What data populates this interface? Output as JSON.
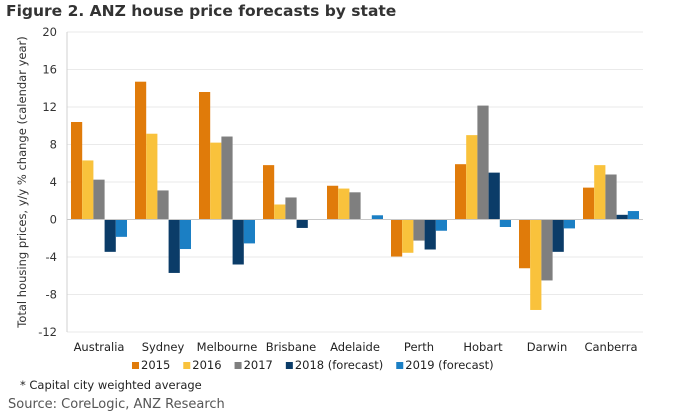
{
  "chart_data": {
    "type": "bar",
    "title": "Figure 2. ANZ house price forecasts by state",
    "ylabel": "Total housing prices, y/y % change (calendar year)",
    "xlabel": "",
    "ylim": [
      -12,
      20
    ],
    "yticks": [
      20,
      16,
      12,
      8,
      4,
      0,
      -4,
      -8,
      -12
    ],
    "grid": true,
    "legend_position": "bottom",
    "categories": [
      "Australia",
      "Sydney",
      "Melbourne",
      "Brisbane",
      "Adelaide",
      "Perth",
      "Hobart",
      "Darwin",
      "Canberra"
    ],
    "series": [
      {
        "name": "2015",
        "color": "#E07B0A",
        "values": [
          10.4,
          14.7,
          13.6,
          5.8,
          3.6,
          -3.95,
          5.9,
          -5.2,
          3.4
        ]
      },
      {
        "name": "2016",
        "color": "#F9C23C",
        "values": [
          6.3,
          9.15,
          8.2,
          1.6,
          3.3,
          -3.55,
          9.0,
          -9.65,
          5.8
        ]
      },
      {
        "name": "2017",
        "color": "#7F7F7F",
        "values": [
          4.25,
          3.1,
          8.85,
          2.35,
          2.9,
          -2.25,
          12.15,
          -6.5,
          4.8
        ]
      },
      {
        "name": "2018 (forecast)",
        "color": "#0B3C68",
        "values": [
          -3.45,
          -5.7,
          -4.8,
          -0.9,
          0,
          -3.2,
          5.0,
          -3.45,
          0.5
        ]
      },
      {
        "name": "2019 (forecast)",
        "color": "#1B7FC4",
        "values": [
          -1.85,
          -3.15,
          -2.55,
          0,
          0.45,
          -1.2,
          -0.8,
          -0.95,
          0.9
        ]
      }
    ]
  },
  "footnote": "* Capital city weighted average",
  "source": "Source: CoreLogic, ANZ Research"
}
